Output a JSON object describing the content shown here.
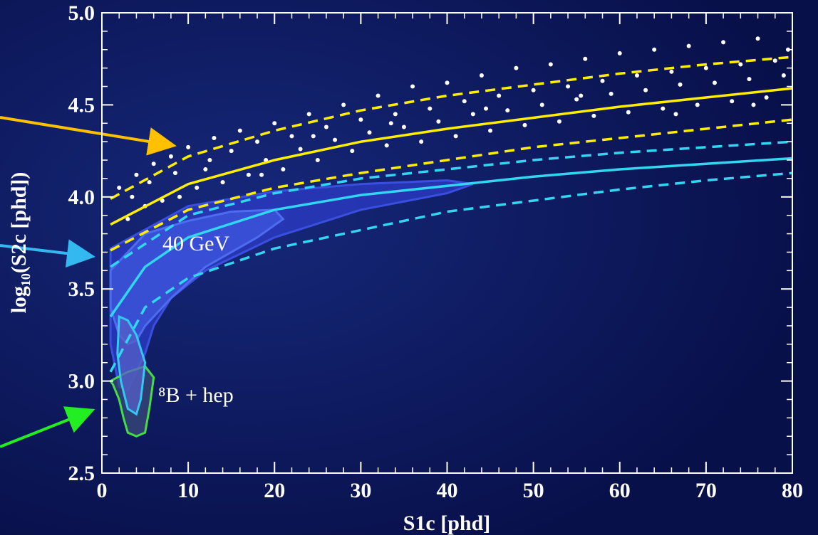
{
  "chart_data": {
    "type": "scatter",
    "xlabel": "S1c [phd]",
    "ylabel": "log₁₀(S2c [phd])",
    "xlim": [
      0,
      80
    ],
    "ylim": [
      2.5,
      5.0
    ],
    "xticks": [
      0,
      10,
      20,
      30,
      40,
      50,
      60,
      70,
      80
    ],
    "yticks": [
      2.5,
      {
        "value": 3,
        "label": "3.0"
      },
      3.5,
      {
        "value": 4,
        "label": "4.0"
      },
      4.5,
      {
        "value": 5,
        "label": "5.0"
      }
    ],
    "annotations": [
      "40 GeV",
      "⁸B + hep"
    ],
    "points": {
      "color": "#ffffff",
      "x": [
        2,
        3,
        4,
        5,
        6,
        7,
        8,
        9,
        10,
        11,
        12,
        13,
        14,
        15,
        16,
        17,
        18,
        19,
        20,
        21,
        22,
        23,
        24,
        25,
        26,
        27,
        28,
        29,
        30,
        31,
        32,
        33,
        34,
        35,
        36,
        37,
        38,
        39,
        40,
        41,
        42,
        43,
        44,
        45,
        46,
        47,
        48,
        49,
        50,
        51,
        52,
        53,
        54,
        55,
        56,
        57,
        58,
        59,
        60,
        61,
        62,
        63,
        64,
        65,
        66,
        67,
        68,
        69,
        70,
        71,
        72,
        73,
        74,
        75,
        76,
        77,
        78,
        79,
        3.5,
        5.5,
        8.5,
        12.5,
        18.5,
        24.5,
        33.5,
        44.5,
        55.5,
        66.5,
        75.5,
        79.5
      ],
      "y": [
        4.05,
        3.88,
        4.12,
        3.95,
        4.18,
        3.98,
        4.22,
        4.0,
        4.27,
        4.05,
        4.15,
        4.32,
        4.08,
        4.25,
        4.36,
        4.12,
        4.3,
        4.2,
        4.4,
        4.15,
        4.33,
        4.26,
        4.45,
        4.2,
        4.38,
        4.31,
        4.5,
        4.25,
        4.42,
        4.35,
        4.55,
        4.28,
        4.45,
        4.38,
        4.6,
        4.3,
        4.48,
        4.41,
        4.62,
        4.33,
        4.52,
        4.45,
        4.66,
        4.36,
        4.55,
        4.47,
        4.7,
        4.39,
        4.58,
        4.5,
        4.72,
        4.41,
        4.6,
        4.53,
        4.75,
        4.44,
        4.63,
        4.56,
        4.78,
        4.46,
        4.66,
        4.58,
        4.8,
        4.48,
        4.68,
        4.61,
        4.82,
        4.5,
        4.7,
        4.62,
        4.84,
        4.52,
        4.72,
        4.64,
        4.86,
        4.54,
        4.74,
        4.66,
        4.0,
        4.08,
        4.13,
        4.2,
        4.12,
        4.33,
        4.4,
        4.48,
        4.55,
        4.45,
        4.5,
        4.8
      ]
    },
    "contours": [
      {
        "color": "#3a4fe0",
        "fill": "#2c3cc8",
        "x": [
          1,
          10,
          20,
          30,
          40,
          43,
          40,
          30,
          20,
          12,
          8,
          6,
          5,
          4,
          3,
          2,
          1,
          1
        ],
        "y": [
          3.72,
          3.95,
          4.03,
          4.07,
          4.09,
          4.07,
          4.02,
          3.93,
          3.78,
          3.6,
          3.45,
          3.3,
          3.15,
          3.05,
          2.95,
          2.97,
          3.2,
          3.5
        ]
      },
      {
        "color": "#4d6cf0",
        "fill": "#3f58e0",
        "x": [
          1,
          5,
          10,
          15,
          20,
          21,
          18,
          12,
          8,
          5,
          4,
          3,
          2,
          1
        ],
        "y": [
          3.6,
          3.8,
          3.87,
          3.92,
          3.93,
          3.88,
          3.78,
          3.62,
          3.45,
          3.3,
          3.22,
          3.2,
          3.25,
          3.4
        ]
      },
      {
        "color": "#44dd44",
        "fill": "#3a4a7a",
        "x": [
          1,
          3,
          5,
          6,
          5.5,
          5,
          4,
          3,
          2.5,
          2,
          1.3
        ],
        "y": [
          3.0,
          3.05,
          3.08,
          3.02,
          2.85,
          2.72,
          2.7,
          2.72,
          2.8,
          2.9,
          2.98
        ]
      },
      {
        "color": "#33c8f0",
        "fill": "#5560c8",
        "x": [
          2,
          3,
          4,
          5,
          4.5,
          4,
          3,
          2.2,
          1.8
        ],
        "y": [
          3.35,
          3.33,
          3.25,
          3.1,
          2.9,
          2.82,
          2.85,
          3.0,
          3.15
        ]
      }
    ],
    "series": [
      {
        "color": "#ffee00",
        "dash": false,
        "x": [
          1,
          10,
          20,
          30,
          40,
          50,
          60,
          70,
          80
        ],
        "y": [
          3.85,
          4.07,
          4.2,
          4.3,
          4.37,
          4.43,
          4.49,
          4.54,
          4.59
        ]
      },
      {
        "color": "#ffee00",
        "dash": true,
        "x": [
          1,
          10,
          20,
          30,
          40,
          50,
          60,
          70,
          80
        ],
        "y": [
          3.99,
          4.22,
          4.36,
          4.47,
          4.55,
          4.61,
          4.67,
          4.72,
          4.76
        ]
      },
      {
        "color": "#ffee00",
        "dash": true,
        "x": [
          1,
          10,
          20,
          30,
          40,
          50,
          60,
          70,
          80
        ],
        "y": [
          3.71,
          3.93,
          4.05,
          4.13,
          4.2,
          4.27,
          4.32,
          4.37,
          4.42
        ]
      },
      {
        "color": "#33d6f0",
        "dash": false,
        "x": [
          1,
          5,
          10,
          20,
          30,
          40,
          50,
          60,
          70,
          80
        ],
        "y": [
          3.35,
          3.62,
          3.78,
          3.93,
          4.01,
          4.06,
          4.11,
          4.15,
          4.18,
          4.21
        ]
      },
      {
        "color": "#33d6f0",
        "dash": true,
        "x": [
          1,
          10,
          20,
          30,
          40,
          50,
          60,
          70,
          80
        ],
        "y": [
          3.62,
          3.9,
          4.02,
          4.1,
          4.15,
          4.2,
          4.24,
          4.27,
          4.3
        ]
      },
      {
        "color": "#33d6f0",
        "dash": true,
        "x": [
          1,
          5,
          10,
          20,
          30,
          40,
          50,
          60,
          70,
          80
        ],
        "y": [
          3.05,
          3.4,
          3.56,
          3.72,
          3.82,
          3.92,
          3.98,
          4.04,
          4.09,
          4.13
        ]
      }
    ]
  }
}
